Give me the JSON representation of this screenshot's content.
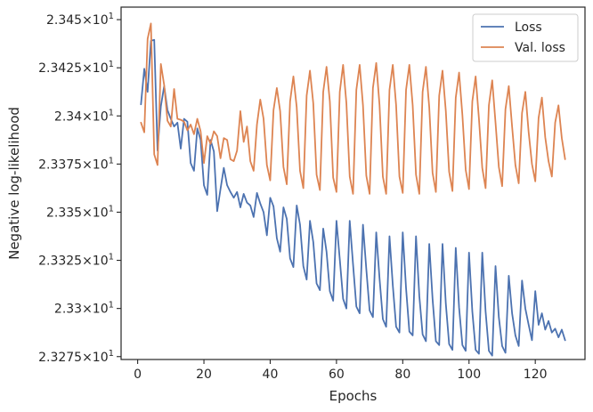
{
  "chart_data": {
    "type": "line",
    "xlabel": "Epochs",
    "ylabel": "Negative log-likelihood",
    "xlim": [
      -5,
      135
    ],
    "ylim": [
      23.2735,
      23.4565
    ],
    "x_ticks": [
      0,
      20,
      40,
      60,
      80,
      100,
      120
    ],
    "y_ticks": [
      {
        "value": 23.275,
        "mantissa": "2.3275",
        "exp": "1"
      },
      {
        "value": 23.3,
        "mantissa": "2.33",
        "exp": "1"
      },
      {
        "value": 23.325,
        "mantissa": "2.3325",
        "exp": "1"
      },
      {
        "value": 23.35,
        "mantissa": "2.335",
        "exp": "1"
      },
      {
        "value": 23.375,
        "mantissa": "2.3375",
        "exp": "1"
      },
      {
        "value": 23.4,
        "mantissa": "2.34",
        "exp": "1"
      },
      {
        "value": 23.425,
        "mantissa": "2.3425",
        "exp": "1"
      },
      {
        "value": 23.45,
        "mantissa": "2.345",
        "exp": "1"
      }
    ],
    "legend_position": "top-right",
    "grid": false,
    "series": [
      {
        "name": "Loss",
        "color": "#4c72b0",
        "points": [
          [
            1,
            23.406
          ],
          [
            2,
            23.4245
          ],
          [
            3,
            23.4125
          ],
          [
            4,
            23.439
          ],
          [
            5,
            23.4395
          ],
          [
            6,
            23.382
          ],
          [
            7,
            23.405
          ],
          [
            8,
            23.4155
          ],
          [
            9,
            23.403
          ],
          [
            10,
            23.3985
          ],
          [
            11,
            23.3945
          ],
          [
            12,
            23.3965
          ],
          [
            13,
            23.383
          ],
          [
            14,
            23.3985
          ],
          [
            15,
            23.397
          ],
          [
            16,
            23.3755
          ],
          [
            17,
            23.3715
          ],
          [
            18,
            23.3935
          ],
          [
            19,
            23.3875
          ],
          [
            20,
            23.364
          ],
          [
            21,
            23.359
          ],
          [
            22,
            23.3875
          ],
          [
            23,
            23.3815
          ],
          [
            24,
            23.3505
          ],
          [
            25,
            23.362
          ],
          [
            26,
            23.373
          ],
          [
            27,
            23.364
          ],
          [
            28,
            23.3605
          ],
          [
            29,
            23.3575
          ],
          [
            30,
            23.3605
          ],
          [
            31,
            23.3525
          ],
          [
            32,
            23.3595
          ],
          [
            33,
            23.355
          ],
          [
            34,
            23.3535
          ],
          [
            35,
            23.3475
          ],
          [
            36,
            23.36
          ],
          [
            37,
            23.3545
          ],
          [
            38,
            23.35
          ],
          [
            39,
            23.338
          ],
          [
            40,
            23.3575
          ],
          [
            41,
            23.353
          ],
          [
            42,
            23.3365
          ],
          [
            43,
            23.3295
          ],
          [
            44,
            23.3525
          ],
          [
            45,
            23.3465
          ],
          [
            46,
            23.326
          ],
          [
            47,
            23.3215
          ],
          [
            48,
            23.3535
          ],
          [
            49,
            23.3435
          ],
          [
            50,
            23.322
          ],
          [
            51,
            23.315
          ],
          [
            52,
            23.3455
          ],
          [
            53,
            23.3345
          ],
          [
            54,
            23.313
          ],
          [
            55,
            23.3095
          ],
          [
            56,
            23.3415
          ],
          [
            57,
            23.3295
          ],
          [
            58,
            23.309
          ],
          [
            59,
            23.304
          ],
          [
            60,
            23.3455
          ],
          [
            61,
            23.3255
          ],
          [
            62,
            23.305
          ],
          [
            63,
            23.3
          ],
          [
            64,
            23.3455
          ],
          [
            65,
            23.323
          ],
          [
            66,
            23.301
          ],
          [
            67,
            23.2975
          ],
          [
            68,
            23.3435
          ],
          [
            69,
            23.3205
          ],
          [
            70,
            23.299
          ],
          [
            71,
            23.2955
          ],
          [
            72,
            23.3395
          ],
          [
            73,
            23.3155
          ],
          [
            74,
            23.2945
          ],
          [
            75,
            23.2905
          ],
          [
            76,
            23.3375
          ],
          [
            77,
            23.312
          ],
          [
            78,
            23.2905
          ],
          [
            79,
            23.2875
          ],
          [
            80,
            23.3395
          ],
          [
            81,
            23.3105
          ],
          [
            82,
            23.288
          ],
          [
            83,
            23.286
          ],
          [
            84,
            23.3375
          ],
          [
            85,
            23.3065
          ],
          [
            86,
            23.2865
          ],
          [
            87,
            23.283
          ],
          [
            88,
            23.3335
          ],
          [
            89,
            23.305
          ],
          [
            90,
            23.283
          ],
          [
            91,
            23.281
          ],
          [
            92,
            23.3335
          ],
          [
            93,
            23.3025
          ],
          [
            94,
            23.2815
          ],
          [
            95,
            23.2785
          ],
          [
            96,
            23.3315
          ],
          [
            97,
            23.3005
          ],
          [
            98,
            23.281
          ],
          [
            99,
            23.278
          ],
          [
            100,
            23.329
          ],
          [
            101,
            23.2985
          ],
          [
            102,
            23.2785
          ],
          [
            103,
            23.2765
          ],
          [
            104,
            23.329
          ],
          [
            105,
            23.2985
          ],
          [
            106,
            23.278
          ],
          [
            107,
            23.2755
          ],
          [
            108,
            23.322
          ],
          [
            109,
            23.2955
          ],
          [
            110,
            23.2805
          ],
          [
            111,
            23.277
          ],
          [
            112,
            23.317
          ],
          [
            113,
            23.2975
          ],
          [
            114,
            23.286
          ],
          [
            115,
            23.2805
          ],
          [
            116,
            23.3145
          ],
          [
            117,
            23.3
          ],
          [
            118,
            23.2915
          ],
          [
            119,
            23.2835
          ],
          [
            120,
            23.309
          ],
          [
            121,
            23.2915
          ],
          [
            122,
            23.2975
          ],
          [
            123,
            23.289
          ],
          [
            124,
            23.2935
          ],
          [
            125,
            23.2875
          ],
          [
            126,
            23.2895
          ],
          [
            127,
            23.285
          ],
          [
            128,
            23.289
          ],
          [
            129,
            23.2835
          ]
        ]
      },
      {
        "name": "Val. loss",
        "color": "#dd8452",
        "points": [
          [
            1,
            23.3965
          ],
          [
            2,
            23.3915
          ],
          [
            3,
            23.44
          ],
          [
            4,
            23.448
          ],
          [
            5,
            23.38
          ],
          [
            6,
            23.3745
          ],
          [
            7,
            23.427
          ],
          [
            8,
            23.416
          ],
          [
            9,
            23.3975
          ],
          [
            10,
            23.3945
          ],
          [
            11,
            23.414
          ],
          [
            12,
            23.3985
          ],
          [
            13,
            23.398
          ],
          [
            14,
            23.397
          ],
          [
            15,
            23.3925
          ],
          [
            16,
            23.3955
          ],
          [
            17,
            23.3905
          ],
          [
            18,
            23.3985
          ],
          [
            19,
            23.392
          ],
          [
            20,
            23.3755
          ],
          [
            21,
            23.3895
          ],
          [
            22,
            23.3855
          ],
          [
            23,
            23.392
          ],
          [
            24,
            23.3895
          ],
          [
            25,
            23.378
          ],
          [
            26,
            23.3885
          ],
          [
            27,
            23.3875
          ],
          [
            28,
            23.3775
          ],
          [
            29,
            23.3765
          ],
          [
            30,
            23.382
          ],
          [
            31,
            23.4025
          ],
          [
            32,
            23.3865
          ],
          [
            33,
            23.3945
          ],
          [
            34,
            23.3765
          ],
          [
            35,
            23.3715
          ],
          [
            36,
            23.3955
          ],
          [
            37,
            23.4085
          ],
          [
            38,
            23.3985
          ],
          [
            39,
            23.3745
          ],
          [
            40,
            23.3665
          ],
          [
            41,
            23.403
          ],
          [
            42,
            23.4145
          ],
          [
            43,
            23.4025
          ],
          [
            44,
            23.3735
          ],
          [
            45,
            23.3645
          ],
          [
            46,
            23.4075
          ],
          [
            47,
            23.4205
          ],
          [
            48,
            23.4045
          ],
          [
            49,
            23.3715
          ],
          [
            50,
            23.3625
          ],
          [
            51,
            23.4105
          ],
          [
            52,
            23.4235
          ],
          [
            53,
            23.4065
          ],
          [
            54,
            23.3695
          ],
          [
            55,
            23.3615
          ],
          [
            56,
            23.4125
          ],
          [
            57,
            23.4255
          ],
          [
            58,
            23.4075
          ],
          [
            59,
            23.368
          ],
          [
            60,
            23.3605
          ],
          [
            61,
            23.4125
          ],
          [
            62,
            23.4265
          ],
          [
            63,
            23.4065
          ],
          [
            64,
            23.3685
          ],
          [
            65,
            23.3595
          ],
          [
            66,
            23.4135
          ],
          [
            67,
            23.4265
          ],
          [
            68,
            23.4055
          ],
          [
            69,
            23.369
          ],
          [
            70,
            23.3595
          ],
          [
            71,
            23.4145
          ],
          [
            72,
            23.4275
          ],
          [
            73,
            23.4055
          ],
          [
            74,
            23.3685
          ],
          [
            75,
            23.3595
          ],
          [
            76,
            23.4135
          ],
          [
            77,
            23.4265
          ],
          [
            78,
            23.4055
          ],
          [
            79,
            23.3685
          ],
          [
            80,
            23.36
          ],
          [
            81,
            23.4135
          ],
          [
            82,
            23.4265
          ],
          [
            83,
            23.4055
          ],
          [
            84,
            23.3695
          ],
          [
            85,
            23.3595
          ],
          [
            86,
            23.4125
          ],
          [
            87,
            23.4255
          ],
          [
            88,
            23.4045
          ],
          [
            89,
            23.3705
          ],
          [
            90,
            23.3605
          ],
          [
            91,
            23.4105
          ],
          [
            92,
            23.4235
          ],
          [
            93,
            23.4025
          ],
          [
            94,
            23.371
          ],
          [
            95,
            23.361
          ],
          [
            96,
            23.4095
          ],
          [
            97,
            23.4225
          ],
          [
            98,
            23.4005
          ],
          [
            99,
            23.372
          ],
          [
            100,
            23.362
          ],
          [
            101,
            23.4075
          ],
          [
            102,
            23.4205
          ],
          [
            103,
            23.3985
          ],
          [
            104,
            23.373
          ],
          [
            105,
            23.3625
          ],
          [
            106,
            23.4055
          ],
          [
            107,
            23.4185
          ],
          [
            108,
            23.3965
          ],
          [
            109,
            23.3735
          ],
          [
            110,
            23.3635
          ],
          [
            111,
            23.4035
          ],
          [
            112,
            23.4155
          ],
          [
            113,
            23.3945
          ],
          [
            114,
            23.3745
          ],
          [
            115,
            23.365
          ],
          [
            116,
            23.4015
          ],
          [
            117,
            23.4125
          ],
          [
            118,
            23.3915
          ],
          [
            119,
            23.375
          ],
          [
            120,
            23.366
          ],
          [
            121,
            23.399
          ],
          [
            122,
            23.4095
          ],
          [
            123,
            23.389
          ],
          [
            124,
            23.3765
          ],
          [
            125,
            23.3685
          ],
          [
            126,
            23.3965
          ],
          [
            127,
            23.4055
          ],
          [
            128,
            23.3885
          ],
          [
            129,
            23.3775
          ]
        ]
      }
    ]
  }
}
